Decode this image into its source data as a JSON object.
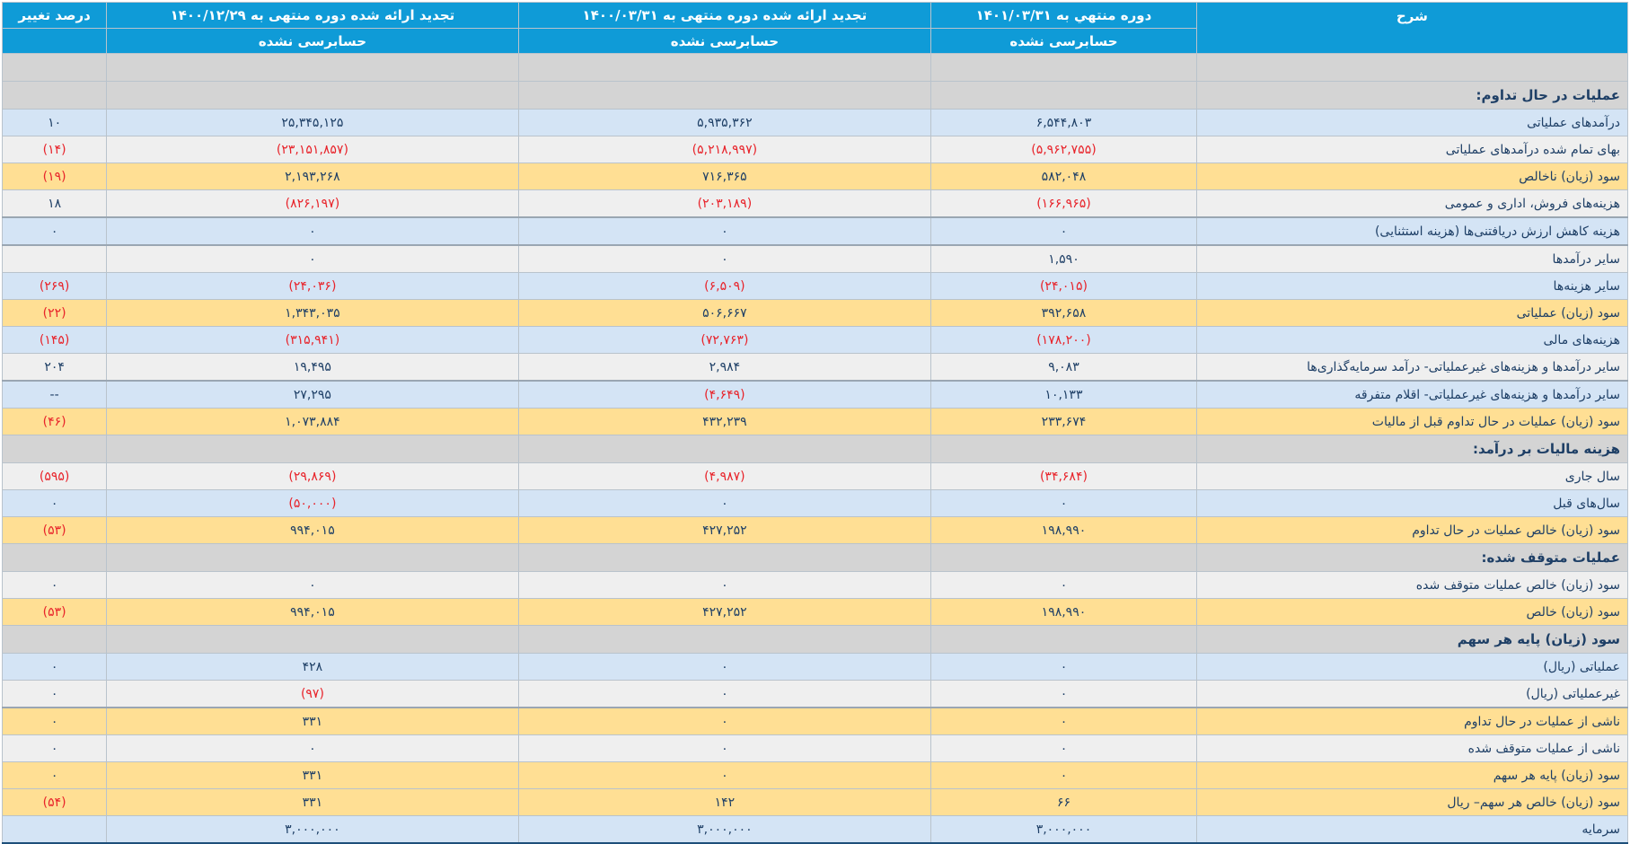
{
  "header": {
    "description": "شرح",
    "col1_title": "دوره منتهي به ۱۴۰۱/۰۳/۳۱",
    "col2_title": "تجدید ارائه شده دوره منتهی به ۱۴۰۰/۰۳/۳۱",
    "col3_title": "تجدید ارائه شده دوره منتهی به ۱۴۰۰/۱۲/۲۹",
    "col4_title": "درصد تغییر",
    "col1_audit": "حسابرسی نشده",
    "col2_audit": "حسابرسی نشده",
    "col3_audit": "حسابرسی نشده"
  },
  "rows": [
    {
      "style": "section",
      "label": "",
      "v1": "",
      "v2": "",
      "v3": "",
      "v4": "",
      "n1": false,
      "n2": false,
      "n3": false,
      "n4": false
    },
    {
      "style": "section",
      "label": "عملیات در حال تداوم:",
      "v1": "",
      "v2": "",
      "v3": "",
      "v4": "",
      "n1": false,
      "n2": false,
      "n3": false,
      "n4": false
    },
    {
      "style": "blue",
      "label": "درآمدهای عملیاتی",
      "v1": "۶,۵۴۴,۸۰۳",
      "v2": "۵,۹۳۵,۳۶۲",
      "v3": "۲۵,۳۴۵,۱۲۵",
      "v4": "۱۰",
      "n1": false,
      "n2": false,
      "n3": false,
      "n4": false
    },
    {
      "style": "gray",
      "label": "بهای تمام شده درآمدهای عملیاتی",
      "v1": "(۵,۹۶۲,۷۵۵)",
      "v2": "(۵,۲۱۸,۹۹۷)",
      "v3": "(۲۳,۱۵۱,۸۵۷)",
      "v4": "(۱۴)",
      "n1": true,
      "n2": true,
      "n3": true,
      "n4": true
    },
    {
      "style": "yellow",
      "label": "سود (زیان) ناخالص",
      "v1": "۵۸۲,۰۴۸",
      "v2": "۷۱۶,۳۶۵",
      "v3": "۲,۱۹۳,۲۶۸",
      "v4": "(۱۹)",
      "n1": false,
      "n2": false,
      "n3": false,
      "n4": true
    },
    {
      "style": "gray",
      "label": "هزینه‌های فروش، اداری و عمومی",
      "v1": "(۱۶۶,۹۶۵)",
      "v2": "(۲۰۳,۱۸۹)",
      "v3": "(۸۲۶,۱۹۷)",
      "v4": "۱۸",
      "n1": true,
      "n2": true,
      "n3": true,
      "n4": false
    },
    {
      "style": "blue thick",
      "label": "هزینه کاهش ارزش دریافتنی‌ها (هزینه استثنایی)",
      "v1": "۰",
      "v2": "۰",
      "v3": "۰",
      "v4": "۰",
      "n1": false,
      "n2": false,
      "n3": false,
      "n4": false
    },
    {
      "style": "gray thick",
      "label": "سایر درآمدها",
      "v1": "۱,۵۹۰",
      "v2": "۰",
      "v3": "۰",
      "v4": "",
      "n1": false,
      "n2": false,
      "n3": false,
      "n4": false
    },
    {
      "style": "blue",
      "label": "سایر هزینه‌ها",
      "v1": "(۲۴,۰۱۵)",
      "v2": "(۶,۵۰۹)",
      "v3": "(۲۴,۰۳۶)",
      "v4": "(۲۶۹)",
      "n1": true,
      "n2": true,
      "n3": true,
      "n4": true
    },
    {
      "style": "yellow",
      "label": "سود (زیان) عملیاتی",
      "v1": "۳۹۲,۶۵۸",
      "v2": "۵۰۶,۶۶۷",
      "v3": "۱,۳۴۳,۰۳۵",
      "v4": "(۲۲)",
      "n1": false,
      "n2": false,
      "n3": false,
      "n4": true
    },
    {
      "style": "blue",
      "label": "هزینه‌های مالی",
      "v1": "(۱۷۸,۲۰۰)",
      "v2": "(۷۲,۷۶۳)",
      "v3": "(۳۱۵,۹۴۱)",
      "v4": "(۱۴۵)",
      "n1": true,
      "n2": true,
      "n3": true,
      "n4": true
    },
    {
      "style": "gray",
      "label": "سایر درآمدها و هزینه‌های غیرعملیاتی- درآمد سرمایه‌گذاری‌ها",
      "v1": "۹,۰۸۳",
      "v2": "۲,۹۸۴",
      "v3": "۱۹,۴۹۵",
      "v4": "۲۰۴",
      "n1": false,
      "n2": false,
      "n3": false,
      "n4": false
    },
    {
      "style": "blue thick",
      "label": "سایر درآمدها و هزینه‌های غیرعملیاتی- اقلام متفرقه",
      "v1": "۱۰,۱۳۳",
      "v2": "(۴,۶۴۹)",
      "v3": "۲۷,۲۹۵",
      "v4": "--",
      "n1": false,
      "n2": true,
      "n3": false,
      "n4": false
    },
    {
      "style": "yellow",
      "label": "سود (زیان) عملیات در حال تداوم قبل از مالیات",
      "v1": "۲۳۳,۶۷۴",
      "v2": "۴۳۲,۲۳۹",
      "v3": "۱,۰۷۳,۸۸۴",
      "v4": "(۴۶)",
      "n1": false,
      "n2": false,
      "n3": false,
      "n4": true
    },
    {
      "style": "section",
      "label": "هزینه مالیات بر درآمد:",
      "v1": "",
      "v2": "",
      "v3": "",
      "v4": "",
      "n1": false,
      "n2": false,
      "n3": false,
      "n4": false
    },
    {
      "style": "gray",
      "label": "سال جاری",
      "v1": "(۳۴,۶۸۴)",
      "v2": "(۴,۹۸۷)",
      "v3": "(۲۹,۸۶۹)",
      "v4": "(۵۹۵)",
      "n1": true,
      "n2": true,
      "n3": true,
      "n4": true
    },
    {
      "style": "blue",
      "label": "سال‌های قبل",
      "v1": "۰",
      "v2": "۰",
      "v3": "(۵۰,۰۰۰)",
      "v4": "۰",
      "n1": false,
      "n2": false,
      "n3": true,
      "n4": false
    },
    {
      "style": "yellow",
      "label": "سود (زیان) خالص عملیات در حال تداوم",
      "v1": "۱۹۸,۹۹۰",
      "v2": "۴۲۷,۲۵۲",
      "v3": "۹۹۴,۰۱۵",
      "v4": "(۵۳)",
      "n1": false,
      "n2": false,
      "n3": false,
      "n4": true
    },
    {
      "style": "section",
      "label": "عملیات متوقف شده:",
      "v1": "",
      "v2": "",
      "v3": "",
      "v4": "",
      "n1": false,
      "n2": false,
      "n3": false,
      "n4": false
    },
    {
      "style": "gray",
      "label": "سود (زیان) خالص عملیات متوقف شده",
      "v1": "۰",
      "v2": "۰",
      "v3": "۰",
      "v4": "۰",
      "n1": false,
      "n2": false,
      "n3": false,
      "n4": false
    },
    {
      "style": "yellow",
      "label": "سود (زیان) خالص",
      "v1": "۱۹۸,۹۹۰",
      "v2": "۴۲۷,۲۵۲",
      "v3": "۹۹۴,۰۱۵",
      "v4": "(۵۳)",
      "n1": false,
      "n2": false,
      "n3": false,
      "n4": true
    },
    {
      "style": "section",
      "label": "سود (زیان) پایه هر سهم",
      "v1": "",
      "v2": "",
      "v3": "",
      "v4": "",
      "n1": false,
      "n2": false,
      "n3": false,
      "n4": false
    },
    {
      "style": "blue",
      "label": "عملیاتی (ریال)",
      "v1": "۰",
      "v2": "۰",
      "v3": "۴۲۸",
      "v4": "۰",
      "n1": false,
      "n2": false,
      "n3": false,
      "n4": false
    },
    {
      "style": "gray",
      "label": "غیرعملیاتی (ریال)",
      "v1": "۰",
      "v2": "۰",
      "v3": "(۹۷)",
      "v4": "۰",
      "n1": false,
      "n2": false,
      "n3": true,
      "n4": false
    },
    {
      "style": "yellow thick",
      "label": "ناشی از عملیات در حال تداوم",
      "v1": "۰",
      "v2": "۰",
      "v3": "۳۳۱",
      "v4": "۰",
      "n1": false,
      "n2": false,
      "n3": false,
      "n4": false
    },
    {
      "style": "gray",
      "label": "ناشی از عملیات متوقف شده",
      "v1": "۰",
      "v2": "۰",
      "v3": "۰",
      "v4": "۰",
      "n1": false,
      "n2": false,
      "n3": false,
      "n4": false
    },
    {
      "style": "yellow",
      "label": "سود (زیان) پایه هر سهم",
      "v1": "۰",
      "v2": "۰",
      "v3": "۳۳۱",
      "v4": "۰",
      "n1": false,
      "n2": false,
      "n3": false,
      "n4": false
    },
    {
      "style": "yellow",
      "label": "سود (زیان) خالص هر سهم– ریال",
      "v1": "۶۶",
      "v2": "۱۴۲",
      "v3": "۳۳۱",
      "v4": "(۵۴)",
      "n1": false,
      "n2": false,
      "n3": false,
      "n4": true
    },
    {
      "style": "blue",
      "label": "سرمایه",
      "v1": "۳,۰۰۰,۰۰۰",
      "v2": "۳,۰۰۰,۰۰۰",
      "v3": "۳,۰۰۰,۰۰۰",
      "v4": "",
      "n1": false,
      "n2": false,
      "n3": false,
      "n4": false
    }
  ],
  "colors": {
    "header_bg": "#0f9bd7",
    "section_bg": "#d4d4d4",
    "blue_row": "#d4e4f5",
    "gray_row": "#efefef",
    "yellow_row": "#ffdf94",
    "negative": "#e8232a",
    "text": "#1e3f66"
  }
}
